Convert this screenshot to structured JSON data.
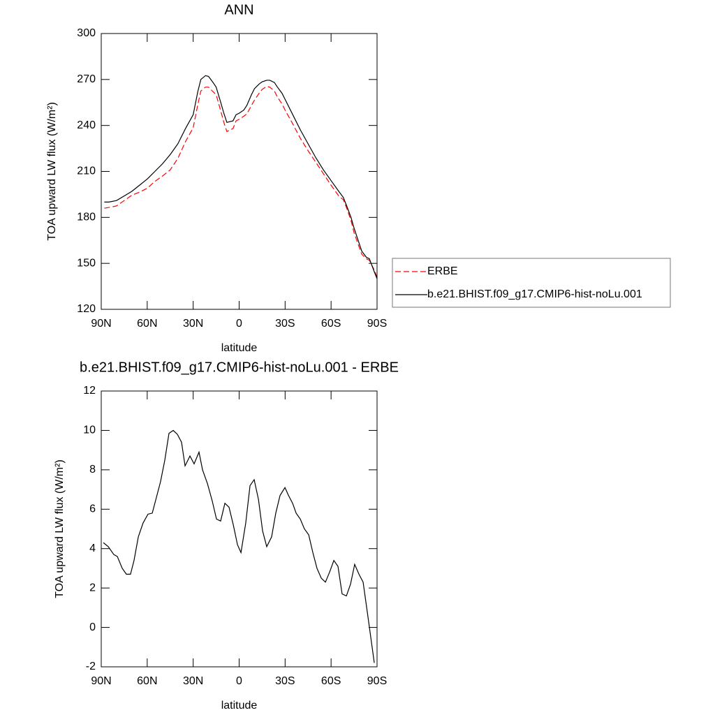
{
  "chart_data": [
    {
      "type": "line",
      "title": "ANN",
      "xlabel": "latitude",
      "ylabel": "TOA upward LW flux (W/m²)",
      "xlim": [
        90,
        -90
      ],
      "xticks": [
        {
          "value": 90,
          "label": "90N"
        },
        {
          "value": 60,
          "label": "60N"
        },
        {
          "value": 30,
          "label": "30N"
        },
        0,
        {
          "value": -30,
          "label": "30S"
        },
        {
          "value": -60,
          "label": "60S"
        },
        {
          "value": -90,
          "label": "90S"
        }
      ],
      "ylim": [
        120,
        300
      ],
      "yticks": [
        120,
        150,
        180,
        210,
        240,
        270,
        300
      ],
      "grid": false,
      "legend": "right",
      "x": [
        88,
        85,
        80,
        75,
        70,
        65,
        60,
        55,
        50,
        45,
        40,
        35,
        30,
        27,
        25,
        22,
        20,
        17,
        15,
        12,
        10,
        8,
        6,
        4,
        2,
        0,
        -3,
        -5,
        -8,
        -10,
        -13,
        -15,
        -18,
        -20,
        -23,
        -25,
        -28,
        -30,
        -35,
        -40,
        -45,
        -50,
        -55,
        -60,
        -65,
        -68,
        -70,
        -73,
        -75,
        -78,
        -80,
        -83,
        -85,
        -88,
        -90
      ],
      "series": [
        {
          "name": "ERBE",
          "color": "#ff0000",
          "style": "dashed",
          "values": [
            186,
            186.5,
            187.5,
            191,
            194.5,
            196.5,
            199,
            203.5,
            207,
            211,
            218.5,
            229.5,
            238.5,
            253.5,
            262.5,
            265,
            265,
            262,
            260,
            249.5,
            242,
            236,
            237,
            238,
            243,
            244,
            246,
            247.5,
            253,
            256.5,
            261,
            263.5,
            265.5,
            265,
            262.5,
            258.5,
            254,
            250,
            241,
            231.5,
            223.5,
            216,
            208.5,
            201,
            194,
            191.5,
            186.5,
            178,
            170,
            161.5,
            156,
            153,
            152,
            146,
            141
          ]
        },
        {
          "name": "b.e21.BHIST.f09_g17.CMIP6-hist-noLu.001",
          "color": "#000000",
          "style": "solid",
          "values": [
            190,
            190,
            191,
            194,
            197,
            201,
            205,
            210,
            215,
            221,
            228,
            238,
            247,
            262,
            270,
            272.5,
            272,
            268,
            265,
            255,
            248,
            242,
            242.5,
            243,
            247,
            248,
            250,
            253,
            260,
            264,
            267,
            268.5,
            269.5,
            269.5,
            268,
            265,
            261,
            257,
            247,
            237,
            228,
            219,
            211,
            204,
            197,
            193,
            188,
            180,
            173,
            164,
            158,
            154,
            153,
            145,
            140
          ]
        }
      ]
    },
    {
      "type": "line",
      "title": "b.e21.BHIST.f09_g17.CMIP6-hist-noLu.001 - ERBE",
      "xlabel": "latitude",
      "ylabel": "TOA upward LW flux (W/m²)",
      "xlim": [
        90,
        -90
      ],
      "xticks": [
        {
          "value": 90,
          "label": "90N"
        },
        {
          "value": 60,
          "label": "60N"
        },
        {
          "value": 30,
          "label": "30N"
        },
        0,
        {
          "value": -30,
          "label": "30S"
        },
        {
          "value": -60,
          "label": "60S"
        },
        {
          "value": -90,
          "label": "90S"
        }
      ],
      "ylim": [
        -2,
        12
      ],
      "yticks": [
        -2,
        0,
        2,
        4,
        6,
        8,
        10,
        12
      ],
      "grid": false,
      "color": "#000000",
      "x": [
        88.6,
        85.4,
        81.8,
        79.5,
        76.3,
        73.6,
        70.9,
        68.6,
        65.8,
        62.7,
        59.5,
        56.7,
        54,
        51.3,
        48.5,
        45.8,
        43,
        40.3,
        37.6,
        35.3,
        32.1,
        29.4,
        26.2,
        23.9,
        20.7,
        17.5,
        14.8,
        12.1,
        9.3,
        6.6,
        3.8,
        1.1,
        -1.2,
        -4.3,
        -7.1,
        -9.8,
        -12.6,
        -15.3,
        -18,
        -21.2,
        -23.9,
        -26.7,
        -29.9,
        -32.2,
        -34.9,
        -37.2,
        -39.9,
        -42.6,
        -45.4,
        -48.1,
        -50.8,
        -53.6,
        -56.3,
        -59,
        -61.8,
        -64.5,
        -67.2,
        -70,
        -72.7,
        -75.4,
        -78.2,
        -80.9,
        -83.6,
        -88.2
      ],
      "values": [
        4.3,
        4.1,
        3.7,
        3.6,
        3.0,
        2.7,
        2.7,
        3.4,
        4.6,
        5.3,
        5.75,
        5.8,
        6.6,
        7.4,
        8.5,
        9.85,
        10.0,
        9.8,
        9.4,
        8.2,
        8.7,
        8.3,
        8.9,
        8.0,
        7.3,
        6.4,
        5.5,
        5.4,
        6.3,
        6.1,
        5.2,
        4.2,
        3.8,
        5.3,
        7.2,
        7.5,
        6.5,
        4.9,
        4.1,
        4.6,
        5.8,
        6.7,
        7.1,
        6.7,
        6.3,
        5.8,
        5.5,
        5.0,
        4.7,
        3.8,
        3.0,
        2.5,
        2.3,
        2.8,
        3.4,
        3.1,
        1.7,
        1.6,
        2.2,
        3.2,
        2.7,
        2.3,
        0.8,
        -1.8
      ]
    }
  ]
}
